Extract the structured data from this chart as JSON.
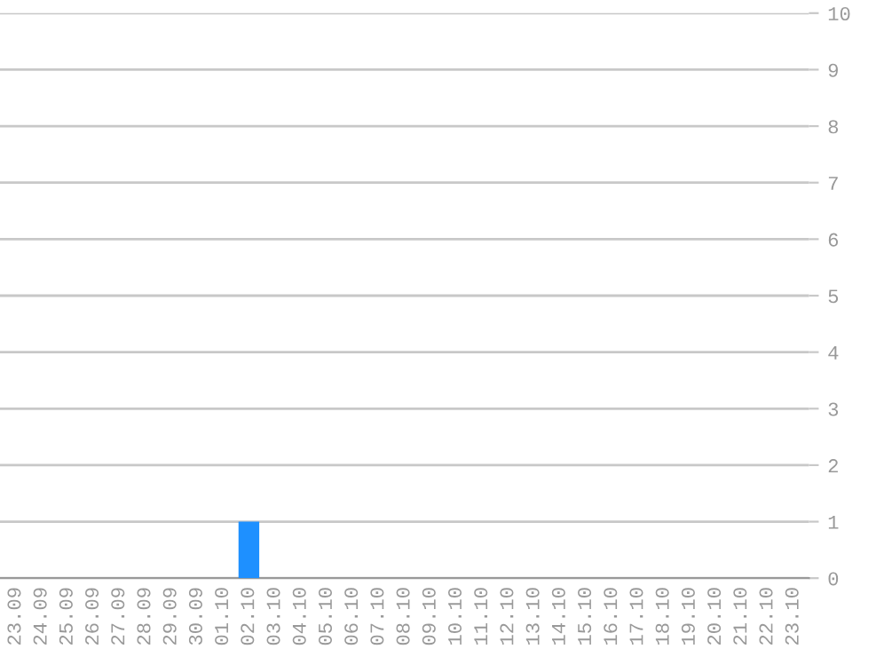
{
  "chart_data": {
    "type": "bar",
    "categories": [
      "23.09",
      "24.09",
      "25.09",
      "26.09",
      "27.09",
      "28.09",
      "29.09",
      "30.09",
      "01.10",
      "02.10",
      "03.10",
      "04.10",
      "05.10",
      "06.10",
      "07.10",
      "08.10",
      "09.10",
      "10.10",
      "11.10",
      "12.10",
      "13.10",
      "14.10",
      "15.10",
      "16.10",
      "17.10",
      "18.10",
      "19.10",
      "20.10",
      "21.10",
      "22.10",
      "23.10"
    ],
    "values": [
      0,
      0,
      0,
      0,
      0,
      0,
      0,
      0,
      0,
      1,
      0,
      0,
      0,
      0,
      0,
      0,
      0,
      0,
      0,
      0,
      0,
      0,
      0,
      0,
      0,
      0,
      0,
      0,
      0,
      0,
      0
    ],
    "color": "#1e90ff",
    "ylim": [
      0,
      10
    ],
    "yticks": [
      0,
      1,
      2,
      3,
      4,
      5,
      6,
      7,
      8,
      9,
      10
    ],
    "grid": "y",
    "legend": false
  }
}
